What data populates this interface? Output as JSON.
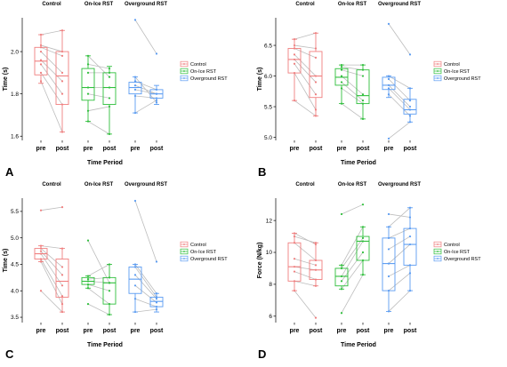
{
  "figure": {
    "colors": {
      "Control": "#f07f7f",
      "On-Ice RST": "#2fbf3c",
      "Overground RST": "#5b9cf2",
      "paired_line": "#bdbdbd"
    }
  },
  "chart_data": [
    {
      "letter": "A",
      "type": "boxplot",
      "ylabel": "Time (s)",
      "xlabel": "Time Period",
      "ylim": [
        1.58,
        2.16
      ],
      "yticks": [
        1.6,
        1.8,
        2.0
      ],
      "ytick_labels": [
        "1.6",
        "1.8",
        "2.0"
      ],
      "show_xlabel": true,
      "groups": [
        {
          "name": "Control",
          "boxes": [
            {
              "time": "pre",
              "whisker_low": 1.85,
              "q1": 1.89,
              "median": 1.955,
              "q3": 2.02,
              "whisker_high": 2.08
            },
            {
              "time": "post",
              "whisker_low": 1.62,
              "q1": 1.75,
              "median": 1.885,
              "q3": 2.0,
              "whisker_high": 2.1
            }
          ],
          "pairs": [
            [
              1.86,
              1.62
            ],
            [
              1.9,
              1.75
            ],
            [
              1.94,
              1.8
            ],
            [
              1.96,
              1.86
            ],
            [
              2.0,
              1.9
            ],
            [
              2.02,
              1.98
            ],
            [
              2.03,
              2.0
            ],
            [
              2.08,
              2.1
            ]
          ]
        },
        {
          "name": "On-Ice RST",
          "boxes": [
            {
              "time": "pre",
              "whisker_low": 1.67,
              "q1": 1.77,
              "median": 1.83,
              "q3": 1.92,
              "whisker_high": 1.98
            },
            {
              "time": "post",
              "whisker_low": 1.61,
              "q1": 1.75,
              "median": 1.83,
              "q3": 1.9,
              "whisker_high": 1.93
            }
          ],
          "pairs": [
            [
              1.67,
              1.61
            ],
            [
              1.72,
              1.74
            ],
            [
              1.8,
              1.78
            ],
            [
              1.83,
              1.83
            ],
            [
              1.9,
              1.9
            ],
            [
              1.94,
              1.92
            ],
            [
              1.98,
              1.88
            ]
          ]
        },
        {
          "name": "Overground RST",
          "boxes": [
            {
              "time": "pre",
              "whisker_low": 1.71,
              "q1": 1.8,
              "median": 1.83,
              "q3": 1.855,
              "whisker_high": 1.88
            },
            {
              "time": "post",
              "whisker_low": 1.75,
              "q1": 1.78,
              "median": 1.8,
              "q3": 1.82,
              "whisker_high": 1.84
            }
          ],
          "pairs": [
            [
              1.71,
              1.77
            ],
            [
              1.79,
              1.78
            ],
            [
              1.82,
              1.8
            ],
            [
              1.84,
              1.8
            ],
            [
              1.86,
              1.82
            ],
            [
              1.88,
              1.76
            ],
            [
              2.15,
              1.99
            ]
          ]
        }
      ]
    },
    {
      "letter": "B",
      "type": "boxplot",
      "ylabel": "Time (s)",
      "xlabel": "Time Period",
      "ylim": [
        4.95,
        6.95
      ],
      "yticks": [
        5.0,
        5.5,
        6.0,
        6.5
      ],
      "ytick_labels": [
        "5.0",
        "5.5",
        "6.0",
        "6.5"
      ],
      "show_xlabel": true,
      "groups": [
        {
          "name": "Control",
          "boxes": [
            {
              "time": "pre",
              "whisker_low": 5.6,
              "q1": 6.05,
              "median": 6.27,
              "q3": 6.45,
              "whisker_high": 6.6
            },
            {
              "time": "post",
              "whisker_low": 5.35,
              "q1": 5.65,
              "median": 6.0,
              "q3": 6.4,
              "whisker_high": 6.7
            }
          ],
          "pairs": [
            [
              5.6,
              5.35
            ],
            [
              6.05,
              5.45
            ],
            [
              6.2,
              5.7
            ],
            [
              6.27,
              5.9
            ],
            [
              6.35,
              6.0
            ],
            [
              6.45,
              6.3
            ],
            [
              6.5,
              6.45
            ],
            [
              6.6,
              6.7
            ]
          ]
        },
        {
          "name": "On-Ice RST",
          "boxes": [
            {
              "time": "pre",
              "whisker_low": 5.55,
              "q1": 5.85,
              "median": 5.98,
              "q3": 6.12,
              "whisker_high": 6.18
            },
            {
              "time": "post",
              "whisker_low": 5.3,
              "q1": 5.55,
              "median": 5.68,
              "q3": 6.1,
              "whisker_high": 6.18
            }
          ],
          "pairs": [
            [
              5.55,
              5.3
            ],
            [
              5.8,
              5.55
            ],
            [
              5.9,
              5.6
            ],
            [
              6.0,
              5.7
            ],
            [
              6.1,
              6.0
            ],
            [
              6.15,
              6.1
            ],
            [
              6.18,
              6.18
            ]
          ]
        },
        {
          "name": "Overground RST",
          "boxes": [
            {
              "time": "pre",
              "whisker_low": 5.65,
              "q1": 5.78,
              "median": 5.85,
              "q3": 5.98,
              "whisker_high": 6.0
            },
            {
              "time": "post",
              "whisker_low": 5.25,
              "q1": 5.38,
              "median": 5.45,
              "q3": 5.62,
              "whisker_high": 5.8
            }
          ],
          "pairs": [
            [
              4.98,
              5.25
            ],
            [
              5.7,
              5.35
            ],
            [
              5.8,
              5.45
            ],
            [
              5.85,
              5.5
            ],
            [
              5.95,
              5.6
            ],
            [
              6.0,
              5.8
            ],
            [
              6.85,
              6.35
            ]
          ]
        }
      ]
    },
    {
      "letter": "C",
      "type": "boxplot",
      "ylabel": "Time (s)",
      "xlabel": "Time Period",
      "ylim": [
        3.4,
        5.75
      ],
      "yticks": [
        3.5,
        4.0,
        4.5,
        5.0,
        5.5
      ],
      "ytick_labels": [
        "3.5",
        "4.0",
        "4.5",
        "5.0",
        "5.5"
      ],
      "show_xlabel": true,
      "groups": [
        {
          "name": "Control",
          "boxes": [
            {
              "time": "pre",
              "whisker_low": 4.55,
              "q1": 4.6,
              "median": 4.7,
              "q3": 4.8,
              "whisker_high": 4.85
            },
            {
              "time": "post",
              "whisker_low": 3.6,
              "q1": 3.88,
              "median": 4.18,
              "q3": 4.6,
              "whisker_high": 4.8
            }
          ],
          "pairs": [
            [
              4.0,
              3.6
            ],
            [
              4.55,
              3.75
            ],
            [
              4.6,
              3.9
            ],
            [
              4.7,
              4.1
            ],
            [
              4.75,
              4.3
            ],
            [
              4.8,
              4.45
            ],
            [
              4.85,
              4.8
            ],
            [
              5.52,
              5.58
            ]
          ]
        },
        {
          "name": "On-Ice RST",
          "boxes": [
            {
              "time": "pre",
              "whisker_low": 4.05,
              "q1": 4.12,
              "median": 4.18,
              "q3": 4.25,
              "whisker_high": 4.28
            },
            {
              "time": "post",
              "whisker_low": 3.55,
              "q1": 3.75,
              "median": 4.15,
              "q3": 4.25,
              "whisker_high": 4.5
            }
          ],
          "pairs": [
            [
              3.75,
              3.55
            ],
            [
              4.05,
              3.75
            ],
            [
              4.12,
              4.0
            ],
            [
              4.18,
              4.15
            ],
            [
              4.22,
              4.25
            ],
            [
              4.28,
              4.5
            ],
            [
              4.95,
              4.15
            ]
          ]
        },
        {
          "name": "Overground RST",
          "boxes": [
            {
              "time": "pre",
              "whisker_low": 3.6,
              "q1": 3.95,
              "median": 4.22,
              "q3": 4.45,
              "whisker_high": 4.5
            },
            {
              "time": "post",
              "whisker_low": 3.6,
              "q1": 3.7,
              "median": 3.8,
              "q3": 3.88,
              "whisker_high": 3.95
            }
          ],
          "pairs": [
            [
              3.6,
              3.65
            ],
            [
              3.85,
              3.7
            ],
            [
              4.1,
              3.78
            ],
            [
              4.3,
              3.85
            ],
            [
              4.45,
              3.88
            ],
            [
              4.5,
              3.95
            ],
            [
              5.7,
              4.55
            ]
          ]
        }
      ]
    },
    {
      "letter": "D",
      "type": "boxplot",
      "ylabel": "Force (N/kg)",
      "xlabel": "Time Period",
      "ylim": [
        5.6,
        13.4
      ],
      "yticks": [
        6,
        8,
        10,
        12
      ],
      "ytick_labels": [
        "6",
        "8",
        "10",
        "12"
      ],
      "show_xlabel": true,
      "groups": [
        {
          "name": "Control",
          "boxes": [
            {
              "time": "pre",
              "whisker_low": 7.6,
              "q1": 8.2,
              "median": 9.1,
              "q3": 10.6,
              "whisker_high": 11.2
            },
            {
              "time": "post",
              "whisker_low": 7.9,
              "q1": 8.3,
              "median": 8.9,
              "q3": 9.5,
              "whisker_high": 10.6
            }
          ],
          "pairs": [
            [
              7.6,
              5.9
            ],
            [
              8.2,
              7.9
            ],
            [
              8.8,
              8.3
            ],
            [
              9.1,
              8.9
            ],
            [
              9.6,
              9.2
            ],
            [
              10.6,
              9.5
            ],
            [
              11.0,
              10.6
            ],
            [
              11.2,
              10.5
            ]
          ]
        },
        {
          "name": "On-Ice RST",
          "boxes": [
            {
              "time": "pre",
              "whisker_low": 7.7,
              "q1": 7.9,
              "median": 8.5,
              "q3": 9.0,
              "whisker_high": 9.2
            },
            {
              "time": "post",
              "whisker_low": 8.6,
              "q1": 9.5,
              "median": 10.7,
              "q3": 11.0,
              "whisker_high": 11.6
            }
          ],
          "pairs": [
            [
              6.2,
              8.6
            ],
            [
              7.7,
              9.5
            ],
            [
              8.2,
              10.0
            ],
            [
              8.5,
              10.7
            ],
            [
              9.0,
              10.9
            ],
            [
              9.2,
              11.6
            ],
            [
              12.4,
              13.0
            ]
          ]
        },
        {
          "name": "Overground RST",
          "boxes": [
            {
              "time": "pre",
              "whisker_low": 6.3,
              "q1": 7.6,
              "median": 9.3,
              "q3": 10.9,
              "whisker_high": 11.6
            },
            {
              "time": "post",
              "whisker_low": 7.6,
              "q1": 9.2,
              "median": 10.5,
              "q3": 11.5,
              "whisker_high": 12.8
            }
          ],
          "pairs": [
            [
              6.3,
              7.6
            ],
            [
              7.6,
              8.7
            ],
            [
              8.5,
              9.2
            ],
            [
              9.3,
              10.5
            ],
            [
              10.2,
              11.0
            ],
            [
              10.9,
              11.5
            ],
            [
              11.6,
              12.8
            ],
            [
              12.4,
              12.2
            ]
          ]
        }
      ]
    }
  ]
}
